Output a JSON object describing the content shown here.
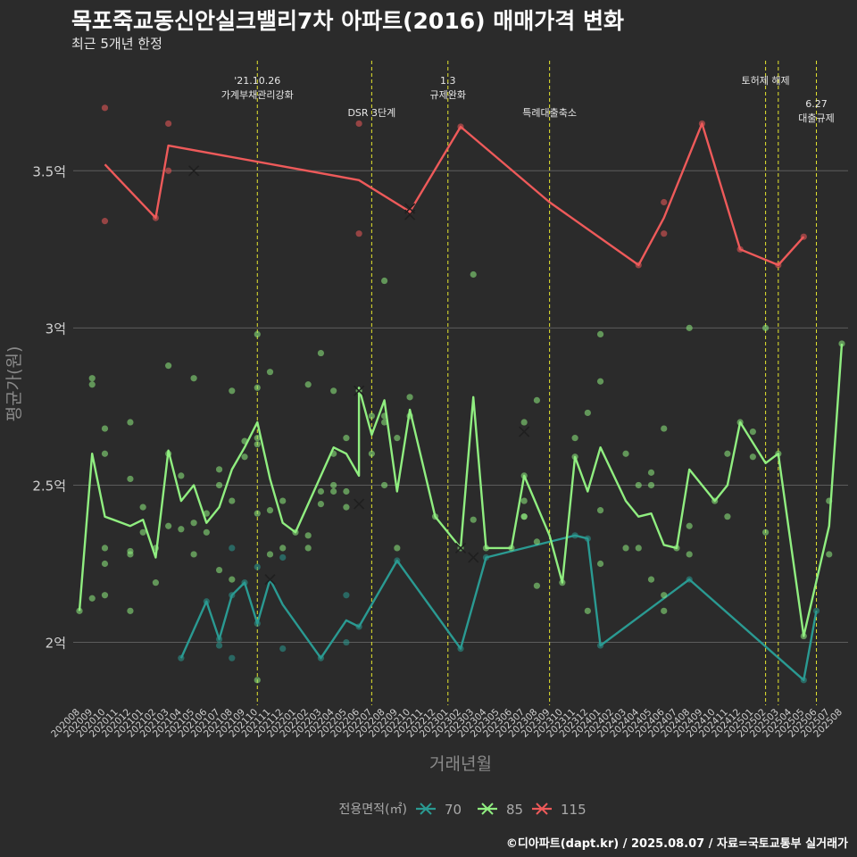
{
  "header": {
    "title": "목포죽교동신안실크밸리7차 아파트(2016) 매매가격 변화",
    "subtitle": "최근 5개년 한정"
  },
  "caption": "©디아파트(dapt.kr) / 2025.08.07 / 자료=국토교통부 실거래가",
  "colors": {
    "background": "#2b2b2b",
    "grid": "#5c5c5c",
    "event_line": "#e6e62e",
    "series_70": "#2a9a92",
    "series_85": "#90ee80",
    "series_115": "#ee5a5a"
  },
  "chart_data": {
    "type": "line",
    "xlabel": "거래년월",
    "ylabel": "평균가(원)",
    "ylim": [
      1.8,
      3.85
    ],
    "y_ticks": [
      {
        "value": 2.0,
        "label": "2억"
      },
      {
        "value": 2.5,
        "label": "2.5억"
      },
      {
        "value": 3.0,
        "label": "3억"
      },
      {
        "value": 3.5,
        "label": "3.5억"
      }
    ],
    "x_categories": [
      "202008",
      "202009",
      "202010",
      "202011",
      "202012",
      "202101",
      "202102",
      "202103",
      "202104",
      "202105",
      "202106",
      "202107",
      "202108",
      "202109",
      "202110",
      "202111",
      "202112",
      "202201",
      "202202",
      "202203",
      "202204",
      "202205",
      "202206",
      "202207",
      "202208",
      "202209",
      "202210",
      "202211",
      "202212",
      "202301",
      "202302",
      "202303",
      "202304",
      "202305",
      "202306",
      "202307",
      "202308",
      "202309",
      "202310",
      "202311",
      "202312",
      "202401",
      "202402",
      "202403",
      "202404",
      "202405",
      "202406",
      "202407",
      "202408",
      "202409",
      "202410",
      "202411",
      "202412",
      "202501",
      "202502",
      "202503",
      "202504",
      "202505",
      "202506",
      "202507",
      "202508"
    ],
    "grid": true,
    "legend": {
      "title": "전용면적(㎡)",
      "position": "bottom"
    },
    "events": [
      {
        "x": "202110",
        "lines": [
          "'21.10.26",
          "가계부채관리강화"
        ],
        "row": 0
      },
      {
        "x": "202207",
        "lines": [
          "DSR 3단계"
        ],
        "row": 1
      },
      {
        "x": "202301",
        "lines": [
          "1.3",
          "규제완화"
        ],
        "row": 0
      },
      {
        "x": "202309",
        "lines": [
          "특례대출축소"
        ],
        "row": 1
      },
      {
        "x": "202502",
        "lines": [
          "토허제 해제"
        ],
        "row": 0
      },
      {
        "x": "202503",
        "lines": [],
        "row": 0
      },
      {
        "x": "202506",
        "lines": [
          "6.27",
          "대출규제"
        ],
        "row": 2
      }
    ],
    "series": [
      {
        "name": "70",
        "line": [
          [
            "202104",
            1.95
          ],
          [
            "202106",
            2.13
          ],
          [
            "202107",
            2.01
          ],
          [
            "202108",
            2.15
          ],
          [
            "202109",
            2.19
          ],
          [
            "202110",
            2.06
          ],
          [
            "202111",
            2.2
          ],
          [
            "202112",
            2.12
          ],
          [
            "202203",
            1.95
          ],
          [
            "202205",
            2.07
          ],
          [
            "202206",
            2.05
          ],
          [
            "202209",
            2.26
          ],
          [
            "202302",
            1.98
          ],
          [
            "202304",
            2.27
          ],
          [
            "202311",
            2.34
          ],
          [
            "202312",
            2.33
          ],
          [
            "202401",
            1.99
          ],
          [
            "202408",
            2.2
          ],
          [
            "202505",
            1.88
          ],
          [
            "202506",
            2.1
          ]
        ],
        "points": [
          [
            "202104",
            1.95
          ],
          [
            "202106",
            2.13
          ],
          [
            "202107",
            2.01
          ],
          [
            "202107",
            1.99
          ],
          [
            "202108",
            2.15
          ],
          [
            "202108",
            1.95
          ],
          [
            "202108",
            2.3
          ],
          [
            "202109",
            2.19
          ],
          [
            "202110",
            2.24
          ],
          [
            "202110",
            2.06
          ],
          [
            "202112",
            1.98
          ],
          [
            "202112",
            2.27
          ],
          [
            "202203",
            1.95
          ],
          [
            "202205",
            2.0
          ],
          [
            "202205",
            2.15
          ],
          [
            "202206",
            2.05
          ],
          [
            "202209",
            2.26
          ],
          [
            "202302",
            1.98
          ],
          [
            "202304",
            2.27
          ],
          [
            "202311",
            2.34
          ],
          [
            "202312",
            2.33
          ],
          [
            "202401",
            1.99
          ],
          [
            "202408",
            2.2
          ],
          [
            "202505",
            1.88
          ],
          [
            "202506",
            2.1
          ]
        ],
        "crosses": [
          [
            "202111",
            2.2
          ],
          [
            "202206",
            2.44
          ],
          [
            "202303",
            2.27
          ]
        ]
      },
      {
        "name": "85",
        "line": [
          [
            "202008",
            2.1
          ],
          [
            "202009",
            2.6
          ],
          [
            "202010",
            2.4
          ],
          [
            "202012",
            2.37
          ],
          [
            "202101",
            2.39
          ],
          [
            "202102",
            2.27
          ],
          [
            "202103",
            2.61
          ],
          [
            "202104",
            2.45
          ],
          [
            "202105",
            2.5
          ],
          [
            "202106",
            2.38
          ],
          [
            "202107",
            2.43
          ],
          [
            "202108",
            2.55
          ],
          [
            "202109",
            2.62
          ],
          [
            "202110",
            2.7
          ],
          [
            "202111",
            2.52
          ],
          [
            "202112",
            2.38
          ],
          [
            "202201",
            2.35
          ],
          [
            "202204",
            2.62
          ],
          [
            "202205",
            2.6
          ],
          [
            "202206",
            2.53
          ],
          [
            "202206",
            2.81
          ],
          [
            "202207",
            2.66
          ],
          [
            "202208",
            2.77
          ],
          [
            "202209",
            2.48
          ],
          [
            "202210",
            2.74
          ],
          [
            "202212",
            2.4
          ],
          [
            "202302",
            2.3
          ],
          [
            "202303",
            2.78
          ],
          [
            "202304",
            2.3
          ],
          [
            "202306",
            2.3
          ],
          [
            "202307",
            2.53
          ],
          [
            "202309",
            2.34
          ],
          [
            "202310",
            2.19
          ],
          [
            "202311",
            2.59
          ],
          [
            "202312",
            2.48
          ],
          [
            "202401",
            2.62
          ],
          [
            "202403",
            2.45
          ],
          [
            "202404",
            2.4
          ],
          [
            "202405",
            2.41
          ],
          [
            "202406",
            2.31
          ],
          [
            "202407",
            2.3
          ],
          [
            "202408",
            2.55
          ],
          [
            "202410",
            2.45
          ],
          [
            "202411",
            2.5
          ],
          [
            "202412",
            2.7
          ],
          [
            "202502",
            2.57
          ],
          [
            "202503",
            2.6
          ],
          [
            "202505",
            2.02
          ],
          [
            "202507",
            2.37
          ],
          [
            "202508",
            2.95
          ]
        ],
        "points": [
          [
            "202008",
            2.1
          ],
          [
            "202009",
            2.84
          ],
          [
            "202009",
            2.82
          ],
          [
            "202009",
            2.14
          ],
          [
            "202010",
            2.68
          ],
          [
            "202010",
            2.6
          ],
          [
            "202010",
            2.3
          ],
          [
            "202010",
            2.25
          ],
          [
            "202010",
            2.15
          ],
          [
            "202012",
            2.7
          ],
          [
            "202012",
            2.52
          ],
          [
            "202012",
            2.29
          ],
          [
            "202012",
            2.28
          ],
          [
            "202012",
            2.1
          ],
          [
            "202101",
            2.43
          ],
          [
            "202101",
            2.35
          ],
          [
            "202102",
            2.19
          ],
          [
            "202102",
            2.3
          ],
          [
            "202103",
            2.88
          ],
          [
            "202103",
            2.6
          ],
          [
            "202103",
            2.37
          ],
          [
            "202104",
            2.53
          ],
          [
            "202104",
            2.36
          ],
          [
            "202105",
            2.84
          ],
          [
            "202105",
            2.38
          ],
          [
            "202105",
            2.28
          ],
          [
            "202106",
            2.41
          ],
          [
            "202106",
            2.35
          ],
          [
            "202107",
            2.55
          ],
          [
            "202107",
            2.5
          ],
          [
            "202107",
            2.23
          ],
          [
            "202108",
            2.8
          ],
          [
            "202108",
            2.45
          ],
          [
            "202108",
            2.2
          ],
          [
            "202109",
            2.64
          ],
          [
            "202109",
            2.59
          ],
          [
            "202110",
            2.98
          ],
          [
            "202110",
            2.81
          ],
          [
            "202110",
            2.65
          ],
          [
            "202110",
            2.63
          ],
          [
            "202110",
            2.41
          ],
          [
            "202110",
            1.88
          ],
          [
            "202111",
            2.86
          ],
          [
            "202111",
            2.42
          ],
          [
            "202111",
            2.28
          ],
          [
            "202112",
            2.45
          ],
          [
            "202112",
            2.3
          ],
          [
            "202201",
            2.35
          ],
          [
            "202202",
            2.82
          ],
          [
            "202202",
            2.34
          ],
          [
            "202202",
            2.3
          ],
          [
            "202203",
            2.92
          ],
          [
            "202203",
            2.48
          ],
          [
            "202203",
            2.44
          ],
          [
            "202204",
            2.8
          ],
          [
            "202204",
            2.6
          ],
          [
            "202204",
            2.5
          ],
          [
            "202204",
            2.48
          ],
          [
            "202205",
            2.65
          ],
          [
            "202205",
            2.48
          ],
          [
            "202205",
            2.43
          ],
          [
            "202206",
            2.8
          ],
          [
            "202207",
            2.72
          ],
          [
            "202207",
            2.6
          ],
          [
            "202208",
            3.15
          ],
          [
            "202208",
            2.72
          ],
          [
            "202208",
            2.7
          ],
          [
            "202208",
            2.5
          ],
          [
            "202209",
            2.65
          ],
          [
            "202209",
            2.3
          ],
          [
            "202210",
            2.78
          ],
          [
            "202210",
            2.72
          ],
          [
            "202212",
            2.4
          ],
          [
            "202302",
            2.3
          ],
          [
            "202303",
            3.17
          ],
          [
            "202303",
            2.39
          ],
          [
            "202304",
            2.3
          ],
          [
            "202306",
            2.3
          ],
          [
            "202307",
            2.7
          ],
          [
            "202307",
            2.53
          ],
          [
            "202307",
            2.45
          ],
          [
            "202307",
            2.4
          ],
          [
            "202307",
            2.4
          ],
          [
            "202308",
            2.77
          ],
          [
            "202308",
            2.32
          ],
          [
            "202308",
            2.18
          ],
          [
            "202310",
            2.19
          ],
          [
            "202311",
            2.65
          ],
          [
            "202311",
            2.59
          ],
          [
            "202312",
            2.73
          ],
          [
            "202312",
            2.1
          ],
          [
            "202401",
            2.98
          ],
          [
            "202401",
            2.83
          ],
          [
            "202401",
            2.25
          ],
          [
            "202401",
            2.42
          ],
          [
            "202403",
            2.6
          ],
          [
            "202403",
            2.3
          ],
          [
            "202404",
            2.5
          ],
          [
            "202404",
            2.3
          ],
          [
            "202405",
            2.54
          ],
          [
            "202405",
            2.5
          ],
          [
            "202405",
            2.2
          ],
          [
            "202406",
            2.68
          ],
          [
            "202406",
            2.15
          ],
          [
            "202406",
            2.1
          ],
          [
            "202407",
            2.3
          ],
          [
            "202408",
            3.0
          ],
          [
            "202408",
            2.37
          ],
          [
            "202408",
            2.28
          ],
          [
            "202410",
            2.45
          ],
          [
            "202411",
            2.6
          ],
          [
            "202411",
            2.4
          ],
          [
            "202412",
            2.7
          ],
          [
            "202501",
            2.67
          ],
          [
            "202501",
            2.59
          ],
          [
            "202502",
            3.0
          ],
          [
            "202502",
            2.35
          ],
          [
            "202503",
            2.6
          ],
          [
            "202505",
            2.02
          ],
          [
            "202507",
            2.45
          ],
          [
            "202507",
            2.28
          ],
          [
            "202508",
            2.95
          ]
        ],
        "crosses": [
          [
            "202206",
            2.8
          ],
          [
            "202302",
            2.3
          ],
          [
            "202307",
            2.67
          ]
        ]
      },
      {
        "name": "115",
        "line": [
          [
            "202010",
            3.52
          ],
          [
            "202102",
            3.35
          ],
          [
            "202103",
            3.58
          ],
          [
            "202206",
            3.47
          ],
          [
            "202210",
            3.37
          ],
          [
            "202302",
            3.64
          ],
          [
            "202309",
            3.4
          ],
          [
            "202404",
            3.2
          ],
          [
            "202406",
            3.35
          ],
          [
            "202409",
            3.65
          ],
          [
            "202412",
            3.25
          ],
          [
            "202503",
            3.2
          ],
          [
            "202505",
            3.29
          ]
        ],
        "points": [
          [
            "202010",
            3.7
          ],
          [
            "202010",
            3.34
          ],
          [
            "202102",
            3.35
          ],
          [
            "202103",
            3.65
          ],
          [
            "202103",
            3.5
          ],
          [
            "202206",
            3.65
          ],
          [
            "202206",
            3.3
          ],
          [
            "202210",
            3.37
          ],
          [
            "202302",
            3.64
          ],
          [
            "202404",
            3.2
          ],
          [
            "202406",
            3.4
          ],
          [
            "202406",
            3.3
          ],
          [
            "202409",
            3.65
          ],
          [
            "202412",
            3.25
          ],
          [
            "202503",
            3.2
          ],
          [
            "202505",
            3.29
          ]
        ],
        "crosses": [
          [
            "202105",
            3.5
          ],
          [
            "202210",
            3.38
          ],
          [
            "202210",
            3.36
          ]
        ]
      }
    ]
  }
}
